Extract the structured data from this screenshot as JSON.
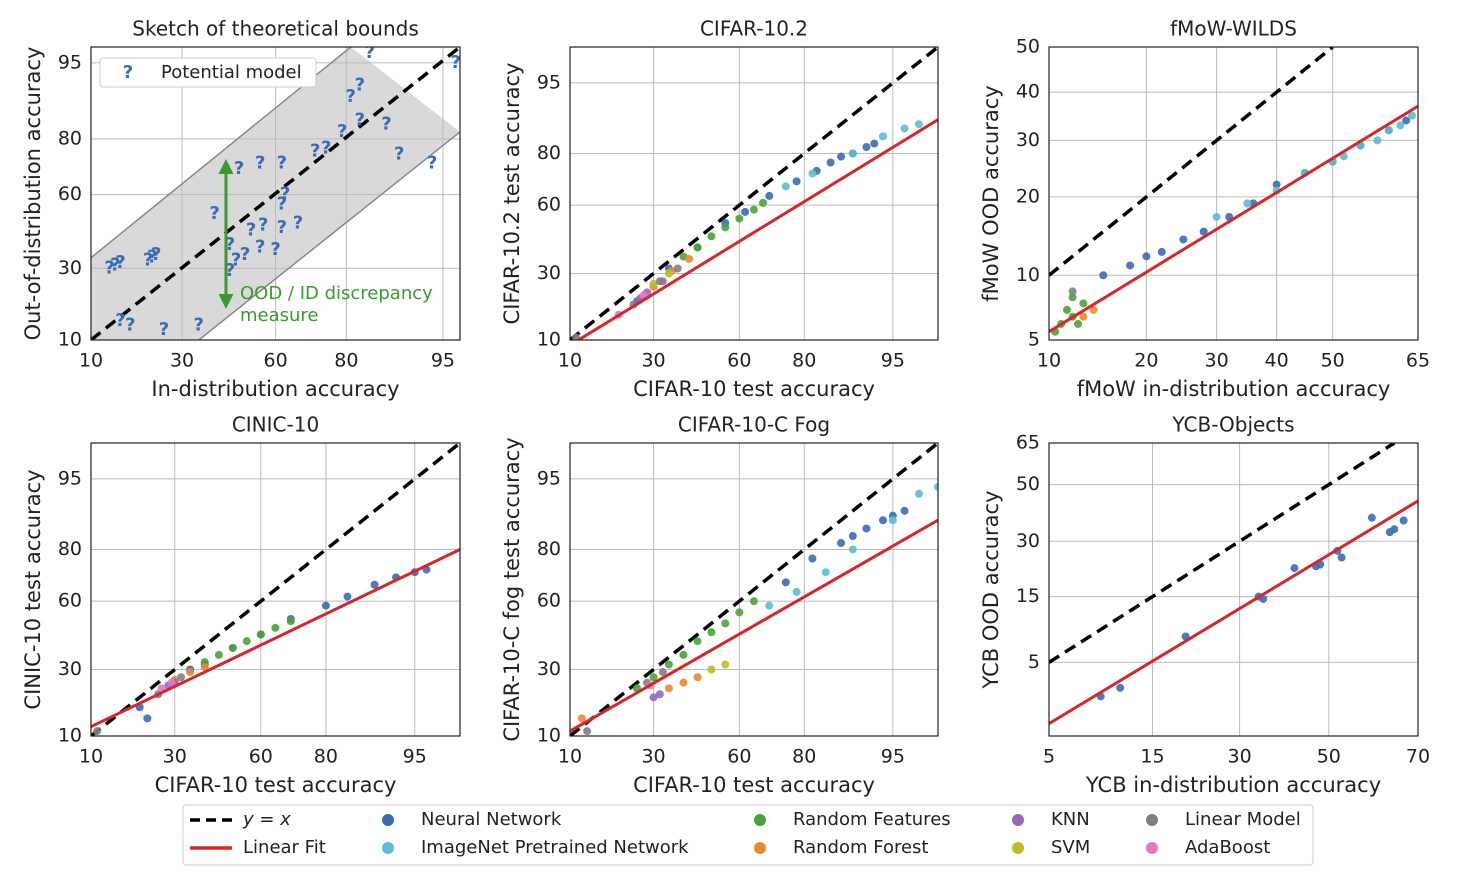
{
  "chart_data": [
    {
      "type": "scatter",
      "title": "Sketch of theoretical bounds",
      "x_label": "In-distribution accuracy",
      "y_label": "Out-of-distribution accuracy",
      "scale": "probit",
      "xlim": [
        10,
        96.3
      ],
      "ylim": [
        10,
        96.5
      ],
      "xticks": [
        10,
        30,
        60,
        80,
        95
      ],
      "yticks": [
        10,
        30,
        60,
        80,
        95
      ],
      "grid": true,
      "diagonal": {
        "x": [
          10,
          96.3
        ],
        "values": [
          10,
          96.5
        ]
      },
      "band": {
        "color": "#d9d9d9",
        "upper": {
          "x": [
            10,
            81
          ],
          "values": [
            34,
            96.5
          ]
        },
        "lower": {
          "x": [
            35,
            96.3
          ],
          "values": [
            10,
            82
          ]
        }
      },
      "legend_position": "upper left",
      "series": [
        {
          "name": "Potential model",
          "marker": "?",
          "color": "#3a6bb5",
          "x": [
            13,
            14,
            15,
            22,
            23,
            21,
            15,
            17,
            25,
            35,
            45,
            47,
            50,
            45,
            55,
            60,
            52,
            56,
            62,
            67,
            40,
            62,
            63,
            48,
            55,
            62,
            72,
            79,
            83,
            88,
            90,
            94,
            81,
            83,
            85,
            96,
            75
          ],
          "values": [
            30,
            31,
            32,
            34,
            35,
            33,
            14,
            13,
            12,
            13,
            29,
            33,
            35,
            39,
            38,
            37,
            45,
            47,
            46,
            48,
            52,
            56,
            60,
            70,
            72,
            72,
            76,
            82,
            85,
            84,
            75,
            72,
            90,
            92,
            96,
            95,
            77
          ]
        }
      ],
      "annotation": {
        "text": [
          "OOD / ID discrepancy",
          "measure"
        ],
        "color": "#3a9a2e"
      }
    },
    {
      "type": "scatter",
      "title": "CIFAR-10.2",
      "x_label": "CIFAR-10 test accuracy",
      "y_label": "CIFAR-10.2 test accuracy",
      "scale": "probit",
      "xlim": [
        10,
        98
      ],
      "ylim": [
        10,
        98
      ],
      "xticks": [
        10,
        30,
        60,
        80,
        95
      ],
      "yticks": [
        10,
        30,
        60,
        80,
        95
      ],
      "grid": true,
      "diagonal": {
        "x": [
          10,
          98
        ],
        "values": [
          10,
          98
        ]
      },
      "fit": {
        "x": [
          10,
          98
        ],
        "values": [
          9,
          89
        ]
      },
      "series": [
        {
          "color": "#3a6bb5",
          "x": [
            25,
            35,
            45,
            55,
            62,
            70,
            78,
            83,
            86,
            88,
            90,
            92,
            93
          ],
          "values": [
            20,
            32,
            41,
            52,
            57,
            64,
            70,
            74,
            77,
            79,
            80,
            82,
            83
          ]
        },
        {
          "color": "#5bbcd6",
          "x": [
            75,
            82,
            90,
            94,
            96,
            97
          ],
          "values": [
            68,
            73,
            80,
            85,
            87,
            88
          ]
        },
        {
          "color": "#4aa33a",
          "x": [
            40,
            45,
            50,
            55,
            60,
            65,
            68
          ],
          "values": [
            37,
            41,
            46,
            50,
            54,
            58,
            61
          ]
        },
        {
          "color": "#f0862b",
          "x": [
            30,
            36,
            42
          ],
          "values": [
            25,
            31,
            36
          ]
        },
        {
          "color": "#9467bd",
          "x": [
            26,
            28,
            33
          ],
          "values": [
            21,
            23,
            27
          ]
        },
        {
          "color": "#bcbd22",
          "x": [
            30,
            35
          ],
          "values": [
            26,
            30
          ]
        },
        {
          "color": "#7f7f7f",
          "x": [
            11,
            24,
            32,
            38
          ],
          "values": [
            10.5,
            19,
            27,
            32
          ]
        },
        {
          "color": "#e377c2",
          "x": [
            20,
            27
          ],
          "values": [
            16,
            22
          ]
        }
      ]
    },
    {
      "type": "scatter",
      "title": "fMoW-WILDS",
      "x_label": "fMoW in-distribution accuracy",
      "y_label": "fMoW OOD accuracy",
      "scale": "probit",
      "xlim": [
        10,
        65
      ],
      "ylim": [
        5,
        50
      ],
      "xticks": [
        10,
        20,
        30,
        40,
        50,
        65
      ],
      "yticks": [
        5,
        10,
        20,
        30,
        40,
        50
      ],
      "grid": true,
      "diagonal": {
        "x": [
          10,
          50
        ],
        "values": [
          10,
          50
        ]
      },
      "fit": {
        "x": [
          10,
          65
        ],
        "values": [
          5.5,
          37
        ]
      },
      "series": [
        {
          "color": "#3a6bb5",
          "x": [
            18,
            20,
            25,
            28,
            32,
            36,
            40,
            45,
            50,
            55,
            60,
            63,
            15,
            22
          ],
          "values": [
            11,
            12,
            14,
            15,
            17,
            19,
            22,
            24,
            26,
            29,
            32,
            34,
            10,
            12.5
          ]
        },
        {
          "color": "#5bbcd6",
          "x": [
            30,
            35,
            40,
            45,
            50,
            52,
            55,
            58,
            60,
            62,
            64
          ],
          "values": [
            17,
            19,
            21,
            24,
            26,
            27,
            29,
            30,
            32,
            33,
            35
          ]
        },
        {
          "color": "#4aa33a",
          "x": [
            10.5,
            11,
            12,
            11.5,
            12.5,
            13,
            12
          ],
          "values": [
            5.5,
            6,
            6.5,
            7,
            6,
            7.5,
            8
          ]
        },
        {
          "color": "#f0862b",
          "x": [
            13,
            14
          ],
          "values": [
            6.5,
            7
          ]
        },
        {
          "color": "#7f7f7f",
          "x": [
            12
          ],
          "values": [
            8.5
          ]
        }
      ]
    },
    {
      "type": "scatter",
      "title": "CINIC-10",
      "x_label": "CIFAR-10 test accuracy",
      "y_label": "CINIC-10 test accuracy",
      "scale": "probit",
      "xlim": [
        10,
        98
      ],
      "ylim": [
        10,
        98
      ],
      "xticks": [
        10,
        30,
        60,
        80,
        95
      ],
      "yticks": [
        10,
        30,
        60,
        80,
        95
      ],
      "grid": true,
      "diagonal": {
        "x": [
          10,
          98
        ],
        "values": [
          10,
          98
        ]
      },
      "fit": {
        "x": [
          10,
          98
        ],
        "values": [
          12,
          80
        ]
      },
      "series": [
        {
          "color": "#3a6bb5",
          "x": [
            20,
            30,
            40,
            50,
            60,
            70,
            80,
            85,
            90,
            93,
            95,
            96,
            22,
            35
          ],
          "values": [
            17,
            25,
            32,
            39,
            45,
            52,
            58,
            62,
            67,
            70,
            72,
            73,
            14,
            30
          ]
        },
        {
          "color": "#4aa33a",
          "x": [
            40,
            45,
            50,
            55,
            60,
            65,
            70
          ],
          "values": [
            33,
            36,
            39,
            42,
            45,
            48,
            51
          ]
        },
        {
          "color": "#f0862b",
          "x": [
            30,
            35,
            40
          ],
          "values": [
            26,
            29,
            31
          ]
        },
        {
          "color": "#9467bd",
          "x": [
            28,
            30
          ],
          "values": [
            24,
            25
          ]
        },
        {
          "color": "#7f7f7f",
          "x": [
            11,
            25,
            32
          ],
          "values": [
            11,
            21,
            27
          ]
        },
        {
          "color": "#e377c2",
          "x": [
            26,
            29
          ],
          "values": [
            23,
            25
          ]
        }
      ]
    },
    {
      "type": "scatter",
      "title": "CIFAR-10-C Fog",
      "x_label": "CIFAR-10 test accuracy",
      "y_label": "CIFAR-10-C fog test accuracy",
      "scale": "probit",
      "xlim": [
        10,
        98
      ],
      "ylim": [
        10,
        98
      ],
      "xticks": [
        10,
        30,
        60,
        80,
        95
      ],
      "yticks": [
        10,
        30,
        60,
        80,
        95
      ],
      "grid": true,
      "diagonal": {
        "x": [
          10,
          98
        ],
        "values": [
          10,
          98
        ]
      },
      "fit": {
        "x": [
          10,
          98
        ],
        "values": [
          11,
          88
        ]
      },
      "series": [
        {
          "color": "#3a6bb5",
          "x": [
            75,
            82,
            88,
            90,
            92,
            94,
            95,
            96
          ],
          "values": [
            68,
            77,
            82,
            84,
            86,
            88,
            89,
            90
          ]
        },
        {
          "color": "#5bbcd6",
          "x": [
            70,
            78,
            85,
            90,
            95,
            97,
            98
          ],
          "values": [
            58,
            64,
            72,
            80,
            88,
            93,
            94
          ]
        },
        {
          "color": "#4aa33a",
          "x": [
            25,
            30,
            35,
            40,
            45,
            50,
            55,
            60,
            65
          ],
          "values": [
            23,
            27,
            32,
            36,
            42,
            46,
            50,
            55,
            60
          ]
        },
        {
          "color": "#f0862b",
          "x": [
            12,
            35,
            40,
            45
          ],
          "values": [
            14,
            23,
            25,
            27
          ]
        },
        {
          "color": "#bcbd22",
          "x": [
            50,
            55
          ],
          "values": [
            30,
            32
          ]
        },
        {
          "color": "#9467bd",
          "x": [
            30,
            32
          ],
          "values": [
            20,
            21
          ]
        },
        {
          "color": "#7f7f7f",
          "x": [
            13,
            28,
            33
          ],
          "values": [
            11,
            25,
            29
          ]
        },
        {
          "color": "#e377c2",
          "x": [
            29
          ],
          "values": [
            24
          ]
        }
      ]
    },
    {
      "type": "scatter",
      "title": "YCB-Objects",
      "x_label": "YCB in-distribution accuracy",
      "y_label": "YCB OOD accuracy",
      "scale": "probit",
      "xlim": [
        5,
        70
      ],
      "ylim": [
        1,
        65
      ],
      "xticks": [
        5,
        15,
        30,
        50,
        70
      ],
      "yticks": [
        5,
        15,
        30,
        50,
        65
      ],
      "grid": true,
      "diagonal": {
        "x": [
          5,
          65
        ],
        "values": [
          5,
          65
        ]
      },
      "fit": {
        "x": [
          5,
          70
        ],
        "values": [
          1.35,
          44
        ]
      },
      "series": [
        {
          "color": "#3a6bb5",
          "x": [
            9,
            11,
            20,
            34,
            35,
            42,
            47,
            48,
            52,
            53,
            60,
            64,
            65,
            67
          ],
          "values": [
            2.5,
            3,
            8,
            15,
            14.5,
            22,
            22.5,
            23,
            27,
            25,
            38,
            33,
            34,
            37
          ]
        }
      ]
    }
  ],
  "legend": {
    "lines": [
      {
        "name": "y = x",
        "color": "#000000",
        "dash": true
      },
      {
        "name": "Linear Fit",
        "color": "#d62728",
        "dash": false
      }
    ],
    "markers": [
      {
        "name": "Neural Network",
        "color": "#3a6bb5"
      },
      {
        "name": "ImageNet Pretrained Network",
        "color": "#5bbcd6"
      },
      {
        "name": "Random Features",
        "color": "#4aa33a"
      },
      {
        "name": "Random Forest",
        "color": "#f0862b"
      },
      {
        "name": "KNN",
        "color": "#9467bd"
      },
      {
        "name": "SVM",
        "color": "#bcbd22"
      },
      {
        "name": "Linear Model",
        "color": "#7f7f7f"
      },
      {
        "name": "AdaBoost",
        "color": "#e377c2"
      }
    ]
  }
}
